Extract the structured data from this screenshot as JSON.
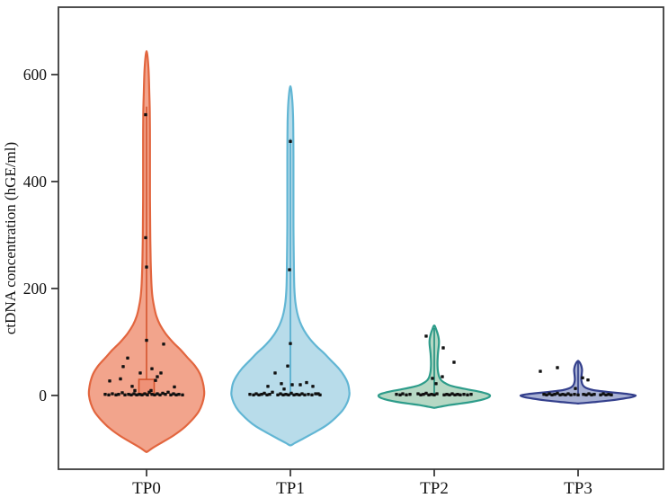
{
  "figure": {
    "background": "#ffffff",
    "border_color": "#3b3b3b",
    "text_color": "#111111"
  },
  "chart_data": {
    "type": "violin",
    "title": "",
    "xlabel": "",
    "ylabel": "ctDNA concentration (hGE/ml)",
    "categories": [
      "TP0",
      "TP1",
      "TP2",
      "TP3"
    ],
    "yticks": [
      0,
      200,
      400,
      600
    ],
    "ylim": [
      -138,
      726
    ],
    "grid": false,
    "legend": "none",
    "point_color": "#111111",
    "series": [
      {
        "name": "TP0",
        "fill": "#f2a48c",
        "stroke": "#e2653e",
        "violin_max": 640,
        "violin_min": -105,
        "profile": [
          [
            640,
            0.6
          ],
          [
            610,
            2.2
          ],
          [
            570,
            3.0
          ],
          [
            530,
            3.6
          ],
          [
            480,
            3.8
          ],
          [
            430,
            3.8
          ],
          [
            380,
            3.8
          ],
          [
            330,
            4.0
          ],
          [
            290,
            4.2
          ],
          [
            250,
            4.6
          ],
          [
            210,
            5.4
          ],
          [
            185,
            6.5
          ],
          [
            165,
            8.5
          ],
          [
            148,
            11
          ],
          [
            132,
            15
          ],
          [
            116,
            21
          ],
          [
            100,
            29
          ],
          [
            85,
            38
          ],
          [
            70,
            46
          ],
          [
            55,
            54
          ],
          [
            40,
            59.5
          ],
          [
            25,
            62.5
          ],
          [
            10,
            64
          ],
          [
            0,
            64
          ],
          [
            -15,
            62
          ],
          [
            -30,
            58
          ],
          [
            -45,
            51
          ],
          [
            -60,
            42
          ],
          [
            -75,
            30
          ],
          [
            -88,
            17
          ],
          [
            -98,
            7
          ],
          [
            -105,
            1
          ]
        ],
        "inner": {
          "box": {
            "low": 3.5,
            "high": 30,
            "width": 17,
            "fill": "#ef9177",
            "stroke": "#d4552e"
          },
          "whisker": {
            "top": 540,
            "bottom": 0
          },
          "stroke": "#d4552e"
        },
        "points": [
          [
            -1,
            525
          ],
          [
            -1,
            295
          ],
          [
            0,
            240
          ],
          [
            0,
            103
          ],
          [
            19,
            96
          ],
          [
            -21,
            70
          ],
          [
            -26,
            54
          ],
          [
            6,
            50
          ],
          [
            -7,
            42
          ],
          [
            16,
            42
          ],
          [
            -29,
            31
          ],
          [
            -41,
            27
          ],
          [
            10,
            28
          ],
          [
            12,
            35
          ],
          [
            -16,
            17
          ],
          [
            31,
            16
          ],
          [
            -46,
            2
          ],
          [
            -42,
            1
          ],
          [
            -38,
            3
          ],
          [
            -34,
            1
          ],
          [
            -31,
            2
          ],
          [
            -27,
            5
          ],
          [
            -24,
            1
          ],
          [
            -20,
            2
          ],
          [
            -17,
            1
          ],
          [
            -14,
            3
          ],
          [
            -11,
            1
          ],
          [
            -8,
            2
          ],
          [
            -5,
            1
          ],
          [
            -2,
            3
          ],
          [
            1,
            1
          ],
          [
            3,
            6
          ],
          [
            6,
            2
          ],
          [
            9,
            1
          ],
          [
            12,
            3
          ],
          [
            15,
            1
          ],
          [
            18,
            4
          ],
          [
            21,
            2
          ],
          [
            24,
            6
          ],
          [
            27,
            1
          ],
          [
            30,
            3
          ],
          [
            33,
            1
          ],
          [
            36,
            2
          ],
          [
            40,
            1
          ],
          [
            -13,
            9
          ],
          [
            5,
            9
          ]
        ]
      },
      {
        "name": "TP1",
        "fill": "#b8dcea",
        "stroke": "#62b6d4",
        "violin_max": 575,
        "violin_min": -93,
        "profile": [
          [
            575,
            0.6
          ],
          [
            550,
            2.2
          ],
          [
            520,
            3.0
          ],
          [
            480,
            3.3
          ],
          [
            430,
            3.4
          ],
          [
            380,
            3.4
          ],
          [
            330,
            3.4
          ],
          [
            280,
            3.6
          ],
          [
            240,
            3.9
          ],
          [
            200,
            4.4
          ],
          [
            175,
            5.5
          ],
          [
            155,
            7.5
          ],
          [
            138,
            10.5
          ],
          [
            122,
            15
          ],
          [
            107,
            21
          ],
          [
            92,
            29
          ],
          [
            78,
            38
          ],
          [
            64,
            46
          ],
          [
            50,
            54
          ],
          [
            36,
            60
          ],
          [
            22,
            64
          ],
          [
            8,
            65.5
          ],
          [
            0,
            65.5
          ],
          [
            -14,
            63
          ],
          [
            -28,
            58
          ],
          [
            -42,
            50
          ],
          [
            -56,
            40
          ],
          [
            -68,
            28
          ],
          [
            -80,
            15
          ],
          [
            -89,
            5
          ],
          [
            -93,
            1
          ]
        ],
        "inner": {
          "box": null,
          "whisker": {
            "top": 480,
            "bottom": 0
          },
          "stroke": "#4da9cb"
        },
        "points": [
          [
            0,
            475
          ],
          [
            -1,
            235
          ],
          [
            0,
            97
          ],
          [
            -3,
            55
          ],
          [
            -17,
            42
          ],
          [
            -25,
            17
          ],
          [
            -10,
            22
          ],
          [
            -7,
            12
          ],
          [
            2,
            20
          ],
          [
            11,
            20
          ],
          [
            18,
            24
          ],
          [
            25,
            17
          ],
          [
            31,
            3
          ],
          [
            -45,
            2
          ],
          [
            -41,
            1
          ],
          [
            -38,
            3
          ],
          [
            -35,
            1
          ],
          [
            -32,
            2
          ],
          [
            -29,
            4
          ],
          [
            -26,
            1
          ],
          [
            -23,
            2
          ],
          [
            -20,
            6
          ],
          [
            -14,
            1
          ],
          [
            -11,
            3
          ],
          [
            -8,
            1
          ],
          [
            -5,
            2
          ],
          [
            -2,
            1
          ],
          [
            1,
            4
          ],
          [
            4,
            1
          ],
          [
            7,
            2
          ],
          [
            10,
            1
          ],
          [
            13,
            3
          ],
          [
            16,
            1
          ],
          [
            20,
            2
          ],
          [
            24,
            1
          ],
          [
            28,
            3
          ],
          [
            33,
            1
          ]
        ]
      },
      {
        "name": "TP2",
        "fill": "#b6d8c4",
        "stroke": "#2d9c8a",
        "violin_max": 130,
        "violin_min": -23,
        "profile": [
          [
            130,
            0.6
          ],
          [
            124,
            2.0
          ],
          [
            117,
            3.5
          ],
          [
            110,
            4.6
          ],
          [
            103,
            5.2
          ],
          [
            96,
            5.2
          ],
          [
            89,
            4.8
          ],
          [
            80,
            4.2
          ],
          [
            70,
            3.8
          ],
          [
            60,
            3.6
          ],
          [
            50,
            3.8
          ],
          [
            42,
            4.4
          ],
          [
            35,
            5.5
          ],
          [
            29,
            7.5
          ],
          [
            24,
            11
          ],
          [
            19,
            17
          ],
          [
            15,
            26
          ],
          [
            11,
            38
          ],
          [
            7,
            50
          ],
          [
            3,
            59
          ],
          [
            0,
            62
          ],
          [
            -4,
            60
          ],
          [
            -8,
            53
          ],
          [
            -12,
            42
          ],
          [
            -15,
            30
          ],
          [
            -18,
            17
          ],
          [
            -21,
            7
          ],
          [
            -23,
            1
          ]
        ],
        "inner": {
          "box": null,
          "whisker": {
            "top": 126,
            "bottom": 0
          },
          "stroke": "#1f8d7d"
        },
        "points": [
          [
            -9,
            111
          ],
          [
            10,
            89
          ],
          [
            22,
            62
          ],
          [
            9,
            35
          ],
          [
            -2,
            32
          ],
          [
            2,
            22
          ],
          [
            -42,
            2
          ],
          [
            -38,
            1
          ],
          [
            -35,
            3
          ],
          [
            -31,
            1
          ],
          [
            -27,
            2
          ],
          [
            -18,
            3
          ],
          [
            -15,
            1
          ],
          [
            -12,
            2
          ],
          [
            -9,
            4
          ],
          [
            -6,
            1
          ],
          [
            -3,
            2
          ],
          [
            0,
            1
          ],
          [
            3,
            3
          ],
          [
            11,
            1
          ],
          [
            14,
            2
          ],
          [
            17,
            1
          ],
          [
            20,
            3
          ],
          [
            23,
            1
          ],
          [
            26,
            2
          ],
          [
            29,
            1
          ],
          [
            33,
            2
          ],
          [
            37,
            1
          ],
          [
            41,
            2
          ]
        ]
      },
      {
        "name": "TP3",
        "fill": "#a8b1d4",
        "stroke": "#333f8c",
        "violin_max": 64,
        "violin_min": -15,
        "profile": [
          [
            64,
            0.6
          ],
          [
            60,
            2.4
          ],
          [
            54,
            3.8
          ],
          [
            48,
            4.4
          ],
          [
            42,
            4.2
          ],
          [
            36,
            3.8
          ],
          [
            30,
            3.6
          ],
          [
            25,
            4.0
          ],
          [
            20,
            5.0
          ],
          [
            16,
            7.0
          ],
          [
            13,
            10.5
          ],
          [
            10,
            17
          ],
          [
            8,
            25
          ],
          [
            6,
            36
          ],
          [
            4,
            48
          ],
          [
            2,
            58
          ],
          [
            0,
            64
          ],
          [
            -3,
            60
          ],
          [
            -6,
            50
          ],
          [
            -9,
            37
          ],
          [
            -12,
            21
          ],
          [
            -14,
            8
          ],
          [
            -15,
            1
          ]
        ],
        "inner": {
          "box": null,
          "whisker": {
            "top": 62,
            "bottom": 0
          },
          "stroke": "#2c3a85"
        },
        "points": [
          [
            -42,
            45
          ],
          [
            -23,
            52
          ],
          [
            11,
            29
          ],
          [
            -3,
            13
          ],
          [
            5,
            33
          ],
          [
            -38,
            2
          ],
          [
            -35,
            1
          ],
          [
            -32,
            3
          ],
          [
            -29,
            1
          ],
          [
            -26,
            2
          ],
          [
            -23,
            4
          ],
          [
            -20,
            1
          ],
          [
            -17,
            2
          ],
          [
            -14,
            1
          ],
          [
            -11,
            3
          ],
          [
            -8,
            1
          ],
          [
            -4,
            2
          ],
          [
            0,
            1
          ],
          [
            6,
            2
          ],
          [
            9,
            1
          ],
          [
            12,
            3
          ],
          [
            15,
            1
          ],
          [
            18,
            2
          ],
          [
            25,
            1
          ],
          [
            28,
            3
          ],
          [
            31,
            1
          ],
          [
            34,
            2
          ],
          [
            37,
            1
          ]
        ]
      }
    ]
  }
}
